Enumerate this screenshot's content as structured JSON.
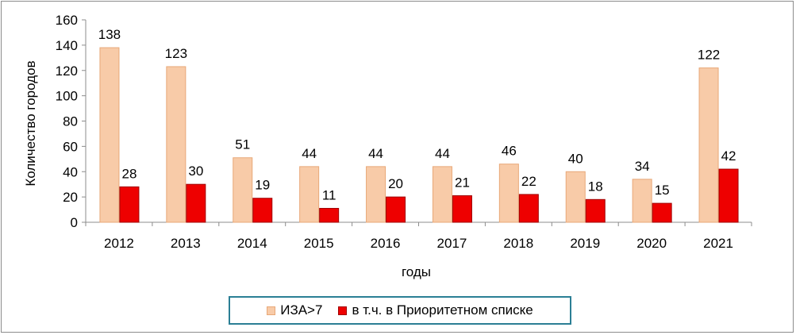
{
  "chart_data": {
    "type": "bar",
    "categories": [
      "2012",
      "2013",
      "2014",
      "2015",
      "2016",
      "2017",
      "2018",
      "2019",
      "2020",
      "2021"
    ],
    "series": [
      {
        "name": "ИЗА>7",
        "values": [
          138,
          123,
          51,
          44,
          44,
          44,
          46,
          40,
          34,
          122
        ],
        "color": "#f8cba8",
        "edge": "#e8a878"
      },
      {
        "name": "в т.ч. в Приоритетном списке",
        "values": [
          28,
          30,
          19,
          11,
          20,
          21,
          22,
          18,
          15,
          42
        ],
        "color": "#ee0000",
        "edge": "#a00000"
      }
    ],
    "xlabel": "годы",
    "ylabel": "Количество городов",
    "ylim": [
      0,
      160
    ],
    "yticks": [
      0,
      20,
      40,
      60,
      80,
      100,
      120,
      140,
      160
    ],
    "grid": false,
    "legend": "bottom"
  }
}
